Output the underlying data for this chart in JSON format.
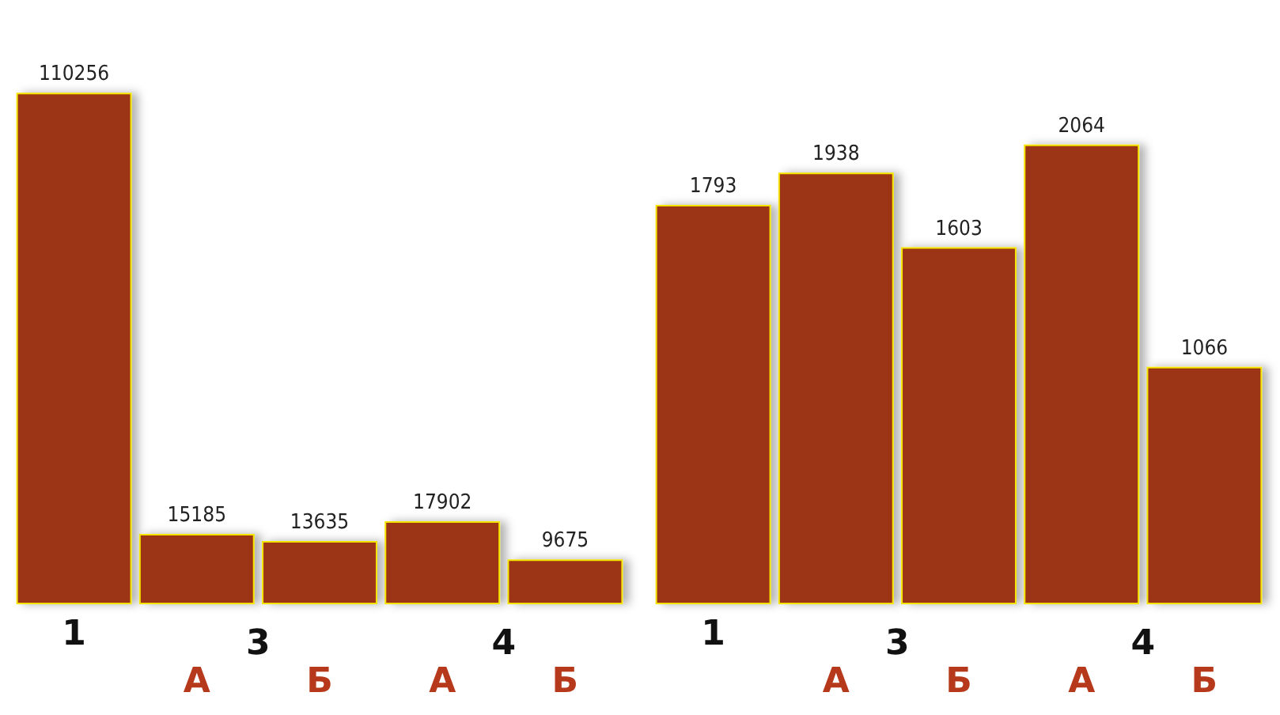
{
  "chart_data": [
    {
      "type": "bar",
      "categories": [
        "1",
        "А",
        "Б",
        "А",
        "Б"
      ],
      "values": [
        110256,
        15185,
        13635,
        17902,
        9675
      ],
      "color": "#9c3616",
      "data_labels": true,
      "annotations": [
        "3",
        "4"
      ],
      "grid": false
    },
    {
      "type": "bar",
      "categories": [
        "1",
        "А",
        "Б",
        "А",
        "Б"
      ],
      "values": [
        1793,
        1938,
        1603,
        2064,
        1066
      ],
      "color": "#9c3616",
      "data_labels": true,
      "annotations": [
        "3",
        "4"
      ],
      "grid": false
    }
  ]
}
